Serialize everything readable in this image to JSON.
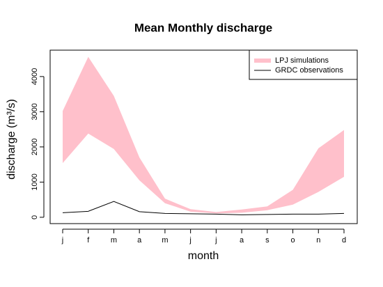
{
  "chart_data": {
    "type": "line",
    "title": "Mean Monthly discharge",
    "x_label": "month",
    "y_label": "discharge (m³/s)",
    "categories": [
      "j",
      "f",
      "m",
      "a",
      "m",
      "j",
      "j",
      "a",
      "s",
      "o",
      "n",
      "d"
    ],
    "series": [
      {
        "name": "LPJ simulations",
        "color": "#ffc0cb",
        "type": "band",
        "lower": [
          1540,
          2380,
          1940,
          1050,
          400,
          160,
          110,
          130,
          200,
          360,
          720,
          1150
        ],
        "upper": [
          3020,
          4560,
          3450,
          1700,
          530,
          230,
          150,
          220,
          310,
          780,
          1960,
          2480
        ]
      },
      {
        "name": "GRDC observations",
        "color": "#000000",
        "type": "line",
        "values": [
          130,
          170,
          450,
          160,
          110,
          100,
          90,
          70,
          80,
          90,
          90,
          110
        ]
      }
    ],
    "ylim": [
      -180,
      4750
    ],
    "yticks": [
      0,
      1000,
      2000,
      3000,
      4000
    ],
    "grid": false,
    "legend": "top-right"
  }
}
